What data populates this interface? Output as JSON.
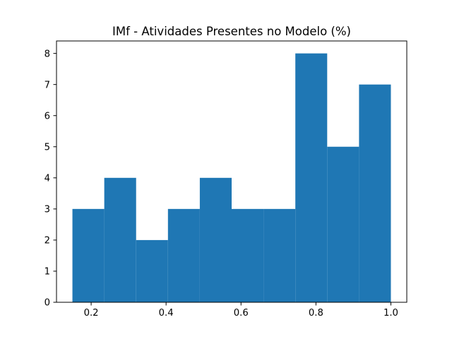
{
  "chart_data": {
    "type": "bar",
    "subtype": "histogram",
    "title": "IMf - Atividades Presentes no Modelo (%)",
    "xlabel": "",
    "ylabel": "",
    "bin_edges": [
      0.15,
      0.235,
      0.32,
      0.405,
      0.49,
      0.575,
      0.66,
      0.745,
      0.83,
      0.915,
      1.0
    ],
    "values": [
      3,
      4,
      2,
      3,
      4,
      3,
      3,
      8,
      5,
      7
    ],
    "xlim": [
      0.1075,
      1.0425
    ],
    "ylim": [
      0,
      8.4
    ],
    "x_ticks": [
      0.2,
      0.4,
      0.6,
      0.8,
      1.0
    ],
    "x_tick_labels": [
      "0.2",
      "0.4",
      "0.6",
      "0.8",
      "1.0"
    ],
    "y_ticks": [
      0,
      1,
      2,
      3,
      4,
      5,
      6,
      7,
      8
    ],
    "y_tick_labels": [
      "0",
      "1",
      "2",
      "3",
      "4",
      "5",
      "6",
      "7",
      "8"
    ],
    "grid": false,
    "legend": "none",
    "bar_color": "#1f77b4"
  }
}
